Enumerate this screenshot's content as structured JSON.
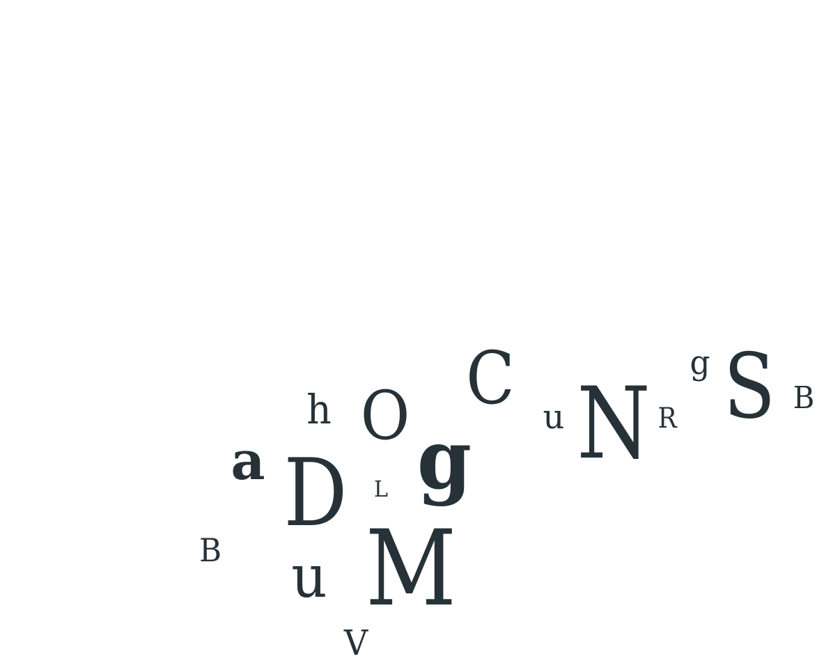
{
  "palette": {
    "background": "#ffffff",
    "ink": "#263238"
  },
  "letters": [
    {
      "char": "h"
    },
    {
      "char": "O"
    },
    {
      "char": "C"
    },
    {
      "char": "g"
    },
    {
      "char": "S"
    },
    {
      "char": "B"
    },
    {
      "char": "u"
    },
    {
      "char": "N"
    },
    {
      "char": "R"
    },
    {
      "char": "a"
    },
    {
      "char": "D"
    },
    {
      "char": "L"
    },
    {
      "char": "g"
    },
    {
      "char": "B"
    },
    {
      "char": "u"
    },
    {
      "char": "M"
    },
    {
      "char": "V"
    }
  ]
}
